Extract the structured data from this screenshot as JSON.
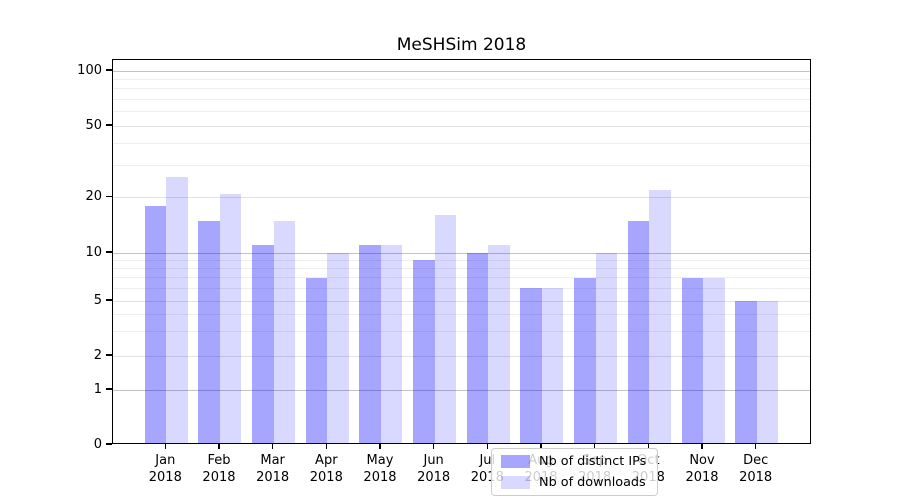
{
  "title": "MeSHSim 2018",
  "legend": {
    "items": [
      {
        "label": "Nb of distinct IPs",
        "color": "rgba(0,0,255,0.35)"
      },
      {
        "label": "Nb of downloads",
        "color": "rgba(0,0,255,0.15)"
      }
    ],
    "position": "lower center"
  },
  "colors": {
    "series_dark": "rgba(0,0,255,0.35)",
    "series_light": "rgba(0,0,255,0.15)",
    "grid_major": "#c3c3c3",
    "grid_mid": "#e2e2e2",
    "grid_minor": "#eeeeee",
    "axis": "#000000",
    "background": "#ffffff"
  },
  "chart_data": {
    "type": "bar",
    "title": "MeSHSim 2018",
    "categories": [
      "Jan 2018",
      "Feb 2018",
      "Mar 2018",
      "Apr 2018",
      "May 2018",
      "Jun 2018",
      "Jul 2018",
      "Aug 2018",
      "Sep 2018",
      "Oct 2018",
      "Nov 2018",
      "Dec 2018"
    ],
    "series": [
      {
        "name": "Nb of distinct IPs",
        "color": "rgba(0,0,255,0.35)",
        "values": [
          18,
          15,
          11,
          7,
          11,
          9,
          10,
          6,
          7,
          15,
          7,
          5
        ]
      },
      {
        "name": "Nb of downloads",
        "color": "rgba(0,0,255,0.15)",
        "values": [
          26,
          21,
          15,
          10,
          11,
          16,
          11,
          6,
          10,
          22,
          7,
          5
        ]
      }
    ],
    "xlabel": "",
    "ylabel": "",
    "yscale": "symlog",
    "ylim": [
      0,
      120
    ],
    "y_major_ticks": [
      0,
      1,
      2,
      5,
      10,
      20,
      50,
      100
    ],
    "y_major_tick_labels": [
      "0",
      "1",
      "2",
      "5",
      "10",
      "20",
      "50",
      "100"
    ],
    "y_decade_gridlines": [
      1,
      10,
      100
    ],
    "y_mid_gridlines": [
      2,
      5,
      20,
      50
    ],
    "y_minor_gridlines": [
      3,
      4,
      6,
      7,
      8,
      9,
      30,
      40,
      60,
      70,
      80,
      90
    ],
    "grid": true,
    "legend_position": "lower center"
  }
}
